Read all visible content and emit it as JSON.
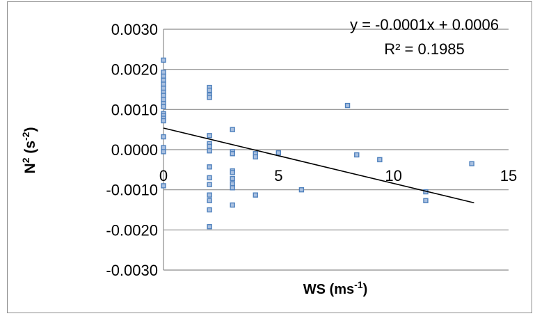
{
  "chart_data": {
    "type": "scatter",
    "xlabel": {
      "base": "WS (ms",
      "sup": "-1",
      "tail": ")"
    },
    "ylabel": {
      "base": "N",
      "sup1": "2",
      "mid": " (s",
      "sup2": "-2",
      "tail": ")"
    },
    "xlim": [
      0,
      15
    ],
    "ylim": [
      -0.003,
      0.003
    ],
    "xticks": [
      0,
      5,
      10,
      15
    ],
    "xtick_labels": [
      "0",
      "5",
      "10",
      "15"
    ],
    "yticks": [
      0.003,
      0.002,
      0.001,
      0.0,
      -0.001,
      -0.002,
      -0.003
    ],
    "ytick_labels": [
      "0.0030",
      "0.0020",
      "0.0010",
      "0.0000",
      "-0.0010",
      "-0.0020",
      "-0.0030"
    ],
    "grid": true,
    "legend": "none",
    "marker_color": "#4f81bd",
    "trendline": {
      "slope": -0.0001379,
      "intercept": 0.0005375,
      "x_range": [
        0,
        13.5
      ],
      "equation": "y = -0.0001x + 0.0006",
      "r_squared": "R² = 0.1985",
      "color": "#000000"
    },
    "series": [
      {
        "points": [
          [
            0,
            0.00223
          ],
          [
            0,
            0.00193
          ],
          [
            0,
            0.00183
          ],
          [
            0,
            0.00173
          ],
          [
            0,
            0.00163
          ],
          [
            0,
            0.00153
          ],
          [
            0,
            0.00143
          ],
          [
            0,
            0.00135
          ],
          [
            0,
            0.00125
          ],
          [
            0,
            0.00115
          ],
          [
            0,
            0.00107
          ],
          [
            0,
            0.0009
          ],
          [
            0,
            0.00085
          ],
          [
            0,
            0.00078
          ],
          [
            0,
            0.00072
          ],
          [
            0,
            0.00032
          ],
          [
            0,
            5e-05
          ],
          [
            0,
            -5e-05
          ],
          [
            0,
            -0.0009
          ],
          [
            2,
            0.00155
          ],
          [
            2,
            0.00148
          ],
          [
            2,
            0.00136
          ],
          [
            2,
            0.0013
          ],
          [
            2,
            0.00035
          ],
          [
            2,
            0.00015
          ],
          [
            2,
            8e-05
          ],
          [
            2,
            -3e-05
          ],
          [
            2,
            -0.00043
          ],
          [
            2,
            -0.0007
          ],
          [
            2,
            -0.00087
          ],
          [
            2,
            -0.00113
          ],
          [
            2,
            -0.00127
          ],
          [
            2,
            -0.0015
          ],
          [
            2,
            -0.00192
          ],
          [
            3,
            0.0005
          ],
          [
            3,
            -5e-05
          ],
          [
            3,
            -0.0001
          ],
          [
            3,
            -0.00053
          ],
          [
            3,
            -0.00057
          ],
          [
            3,
            -0.00072
          ],
          [
            3,
            -0.00085
          ],
          [
            3,
            -0.00095
          ],
          [
            3,
            -0.00138
          ],
          [
            4,
            -0.0001
          ],
          [
            4,
            -0.00018
          ],
          [
            4,
            -0.00113
          ],
          [
            5,
            -8e-05
          ],
          [
            6,
            -0.001
          ],
          [
            8,
            0.0011
          ],
          [
            8.4,
            -0.00013
          ],
          [
            9.4,
            -0.00025
          ],
          [
            11.4,
            -0.00105
          ],
          [
            11.4,
            -0.00127
          ],
          [
            13.4,
            -0.00035
          ]
        ]
      }
    ]
  }
}
